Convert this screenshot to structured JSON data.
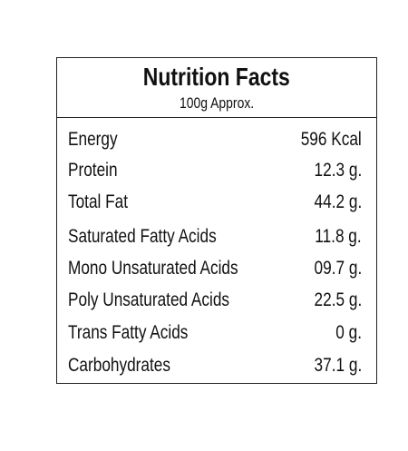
{
  "header": {
    "title": "Nutrition Facts",
    "subtitle": "100g Approx."
  },
  "table": {
    "rows": [
      [
        "Energy",
        "596 Kcal"
      ],
      [
        "Protein",
        "12.3 g."
      ],
      [
        "Total Fat",
        "44.2 g."
      ],
      [
        "Saturated Fatty Acids",
        "11.8 g."
      ],
      [
        "Mono Unsaturated Acids",
        "09.7 g."
      ],
      [
        "Poly Unsaturated Acids",
        "22.5 g."
      ],
      [
        "Trans Fatty Acids",
        "0 g."
      ],
      [
        "Carbohydrates",
        "37.1 g."
      ]
    ]
  }
}
